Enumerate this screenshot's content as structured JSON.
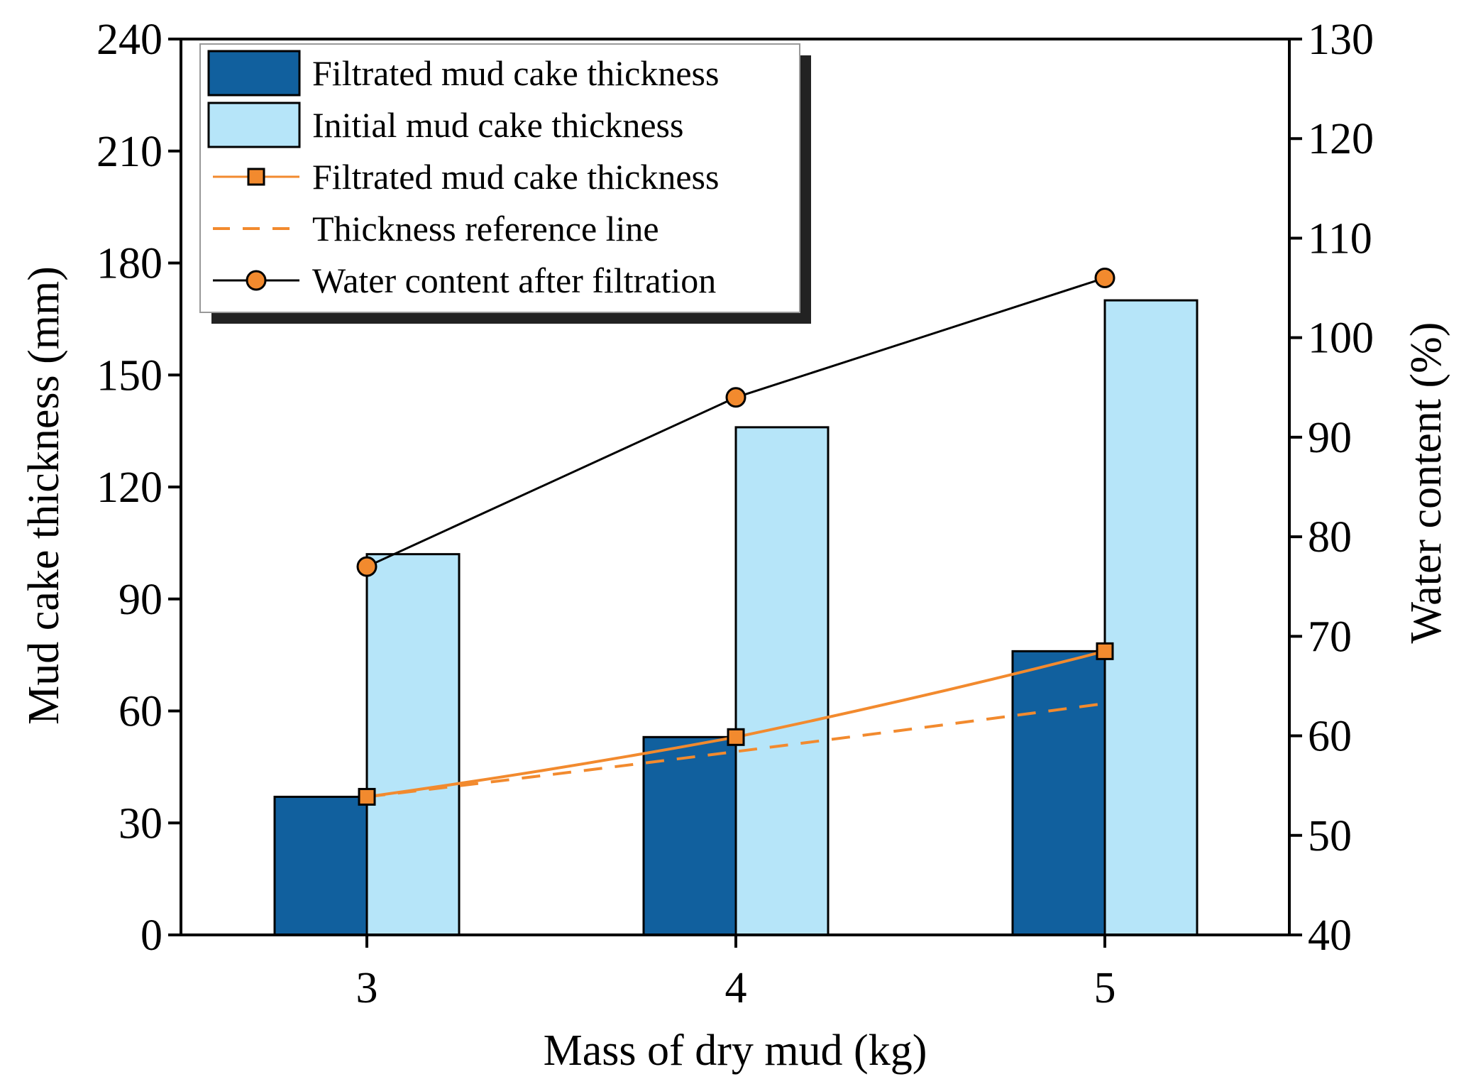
{
  "chart_data": {
    "type": "bar",
    "xlabel": "Mass of dry mud (kg)",
    "ylabel": "Mud cake thickness (mm)",
    "y2label": "Water content (%)",
    "categories": [
      "3",
      "4",
      "5"
    ],
    "x": [
      3,
      4,
      5
    ],
    "ylim": [
      0,
      240
    ],
    "y_ticks": [
      "0",
      "30",
      "60",
      "90",
      "120",
      "150",
      "180",
      "210",
      "240"
    ],
    "y2lim": [
      40,
      130
    ],
    "y2_ticks": [
      "40",
      "50",
      "60",
      "70",
      "80",
      "90",
      "100",
      "110",
      "120",
      "130"
    ],
    "legend_position": "top-left",
    "series": [
      {
        "name": "Filtrated mud cake thickness",
        "kind": "bar",
        "axis": "left",
        "color": "#11609E",
        "values": [
          37,
          53,
          76
        ]
      },
      {
        "name": "Initial mud cake thickness",
        "kind": "bar",
        "axis": "left",
        "color": "#B6E5F9",
        "values": [
          102,
          136,
          170
        ]
      },
      {
        "name": "Filtrated mud cake thickness",
        "kind": "line",
        "marker": "square",
        "axis": "left",
        "color": "#F28A2E",
        "values": [
          37,
          53,
          76
        ]
      },
      {
        "name": "Thickness reference line",
        "kind": "line",
        "style": "dashed",
        "axis": "left",
        "color": "#F28A2E",
        "values": [
          37,
          49.5,
          62
        ]
      },
      {
        "name": "Water content after filtration",
        "kind": "line",
        "marker": "circle",
        "axis": "right",
        "color": "#000000",
        "marker_color": "#F28A2E",
        "values": [
          77,
          94,
          106
        ]
      }
    ]
  }
}
